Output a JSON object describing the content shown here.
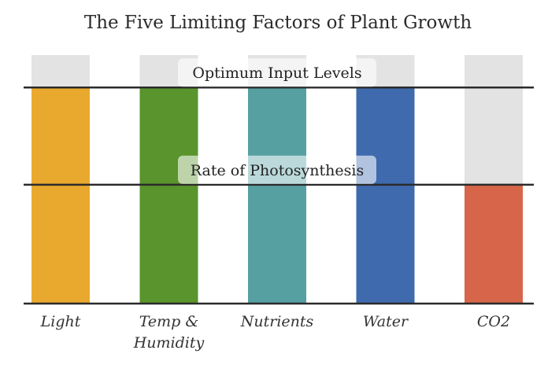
{
  "chart_data": {
    "type": "bar",
    "title": "The Five Limiting Factors of Plant Growth",
    "categories": [
      [
        "Light"
      ],
      [
        "Temp &",
        "Humidity"
      ],
      [
        "Nutrients"
      ],
      [
        "Water"
      ],
      [
        "CO2"
      ]
    ],
    "values": [
      100,
      100,
      100,
      100,
      55
    ],
    "capacity": 115,
    "colors": [
      "#E9A92E",
      "#5A942C",
      "#56A0A2",
      "#3F6AAE",
      "#D6654A"
    ],
    "background_color": "#E3E3E3",
    "ylim": [
      0,
      115
    ],
    "reference_lines": [
      {
        "label": "Optimum Input Levels",
        "value": 100
      },
      {
        "label": "Rate of Photosynthesis",
        "value": 55
      }
    ],
    "grid": false,
    "legend": "none"
  }
}
